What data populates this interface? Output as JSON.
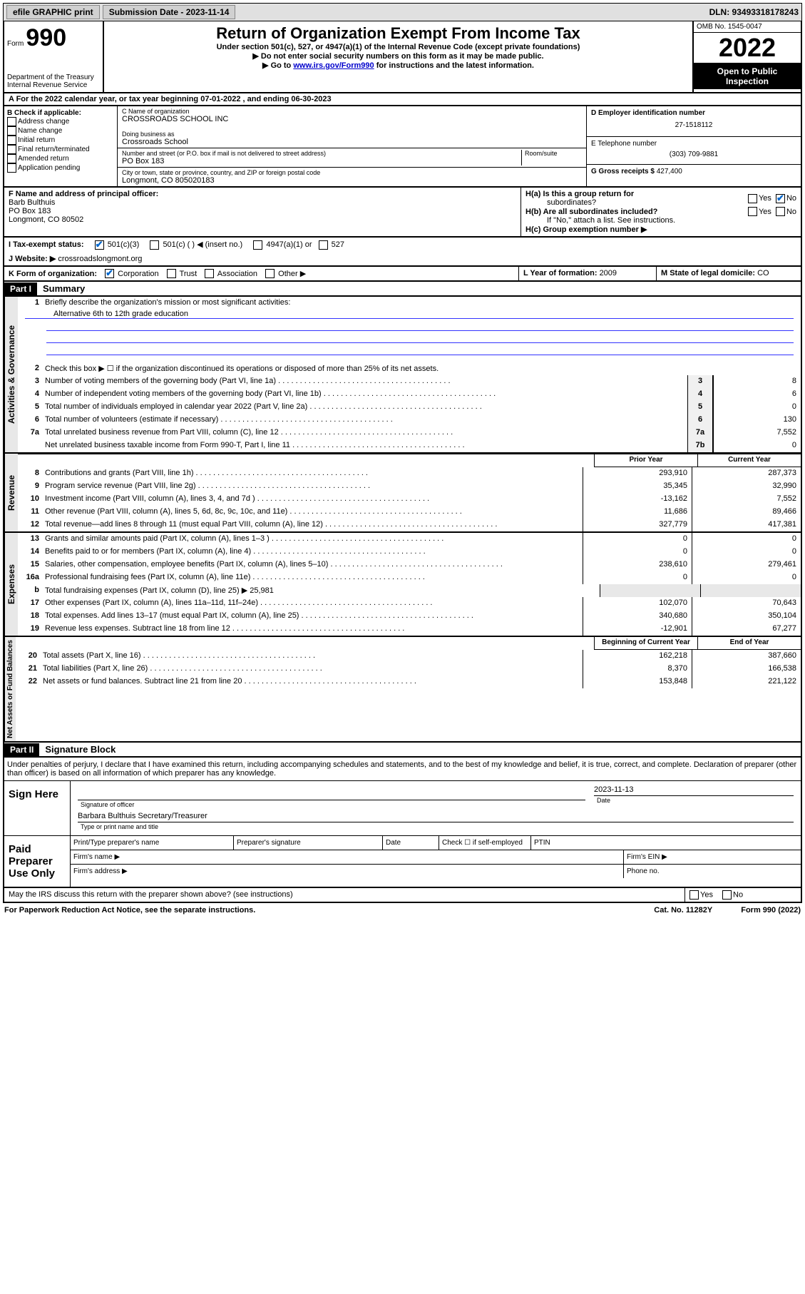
{
  "topbar": {
    "efile": "efile GRAPHIC print",
    "submission_label": "Submission Date - 2023-11-14",
    "dln": "DLN: 93493318178243"
  },
  "header": {
    "form_label": "Form",
    "form_num": "990",
    "dept": "Department of the Treasury",
    "irs": "Internal Revenue Service",
    "title": "Return of Organization Exempt From Income Tax",
    "sub1": "Under section 501(c), 527, or 4947(a)(1) of the Internal Revenue Code (except private foundations)",
    "sub2": "▶ Do not enter social security numbers on this form as it may be made public.",
    "sub3_pre": "▶ Go to ",
    "sub3_link": "www.irs.gov/Form990",
    "sub3_post": " for instructions and the latest information.",
    "omb": "OMB No. 1545-0047",
    "year": "2022",
    "open1": "Open to Public",
    "open2": "Inspection"
  },
  "rowA": {
    "text_pre": "A For the 2022 calendar year, or tax year beginning ",
    "begin": "07-01-2022",
    "mid": " , and ending ",
    "end": "06-30-2023"
  },
  "colB": {
    "hdr": "B Check if applicable:",
    "opts": [
      "Address change",
      "Name change",
      "Initial return",
      "Final return/terminated",
      "Amended return",
      "Application pending"
    ]
  },
  "colC": {
    "name_label": "C Name of organization",
    "name": "CROSSROADS SCHOOL INC",
    "dba_label": "Doing business as",
    "dba": "Crossroads School",
    "addr_label": "Number and street (or P.O. box if mail is not delivered to street address)",
    "room_label": "Room/suite",
    "addr": "PO Box 183",
    "city_label": "City or town, state or province, country, and ZIP or foreign postal code",
    "city": "Longmont, CO  805020183"
  },
  "colD": {
    "ein_label": "D Employer identification number",
    "ein": "27-1518112",
    "phone_label": "E Telephone number",
    "phone": "(303) 709-9881",
    "gross_label": "G Gross receipts $ ",
    "gross": "427,400"
  },
  "rowF": {
    "label": "F Name and address of principal officer:",
    "name": "Barb Bulthuis",
    "addr1": "PO Box 183",
    "addr2": "Longmont, CO  80502"
  },
  "rowH": {
    "ha1": "H(a)  Is this a group return for",
    "ha2": "subordinates?",
    "hb1": "H(b)  Are all subordinates included?",
    "hb2": "If \"No,\" attach a list. See instructions.",
    "hc": "H(c)  Group exemption number ▶",
    "yes": "Yes",
    "no": "No"
  },
  "rowI": {
    "label": "I   Tax-exempt status:",
    "o1": "501(c)(3)",
    "o2": "501(c) (  ) ◀ (insert no.)",
    "o3": "4947(a)(1) or",
    "o4": "527"
  },
  "rowJ": {
    "label": "J   Website: ▶ ",
    "val": "crossroadslongmont.org"
  },
  "rowK": {
    "label": "K Form of organization:",
    "o1": "Corporation",
    "o2": "Trust",
    "o3": "Association",
    "o4": "Other ▶"
  },
  "rowL": {
    "label": "L Year of formation: ",
    "val": "2009"
  },
  "rowM": {
    "label": "M State of legal domicile: ",
    "val": "CO"
  },
  "partI": {
    "tag": "Part I",
    "title": "Summary",
    "l1": "Briefly describe the organization's mission or most significant activities:",
    "mission": "Alternative 6th to 12th grade education",
    "l2": "Check this box ▶ ☐  if the organization discontinued its operations or disposed of more than 25% of its net assets.",
    "lines_simple": [
      {
        "n": "3",
        "d": "Number of voting members of the governing body (Part VI, line 1a)",
        "box": "3",
        "v": "8"
      },
      {
        "n": "4",
        "d": "Number of independent voting members of the governing body (Part VI, line 1b)",
        "box": "4",
        "v": "6"
      },
      {
        "n": "5",
        "d": "Total number of individuals employed in calendar year 2022 (Part V, line 2a)",
        "box": "5",
        "v": "0"
      },
      {
        "n": "6",
        "d": "Total number of volunteers (estimate if necessary)",
        "box": "6",
        "v": "130"
      },
      {
        "n": "7a",
        "d": "Total unrelated business revenue from Part VIII, column (C), line 12",
        "box": "7a",
        "v": "7,552"
      },
      {
        "n": "",
        "d": "Net unrelated business taxable income from Form 990-T, Part I, line 11",
        "box": "7b",
        "v": "0"
      }
    ],
    "hdr_prior": "Prior Year",
    "hdr_curr": "Current Year",
    "revenue": [
      {
        "n": "8",
        "d": "Contributions and grants (Part VIII, line 1h)",
        "p": "293,910",
        "c": "287,373"
      },
      {
        "n": "9",
        "d": "Program service revenue (Part VIII, line 2g)",
        "p": "35,345",
        "c": "32,990"
      },
      {
        "n": "10",
        "d": "Investment income (Part VIII, column (A), lines 3, 4, and 7d )",
        "p": "-13,162",
        "c": "7,552"
      },
      {
        "n": "11",
        "d": "Other revenue (Part VIII, column (A), lines 5, 6d, 8c, 9c, 10c, and 11e)",
        "p": "11,686",
        "c": "89,466"
      },
      {
        "n": "12",
        "d": "Total revenue—add lines 8 through 11 (must equal Part VIII, column (A), line 12)",
        "p": "327,779",
        "c": "417,381"
      }
    ],
    "expenses": [
      {
        "n": "13",
        "d": "Grants and similar amounts paid (Part IX, column (A), lines 1–3 )",
        "p": "0",
        "c": "0"
      },
      {
        "n": "14",
        "d": "Benefits paid to or for members (Part IX, column (A), line 4)",
        "p": "0",
        "c": "0"
      },
      {
        "n": "15",
        "d": "Salaries, other compensation, employee benefits (Part IX, column (A), lines 5–10)",
        "p": "238,610",
        "c": "279,461"
      },
      {
        "n": "16a",
        "d": "Professional fundraising fees (Part IX, column (A), line 11e)",
        "p": "0",
        "c": "0"
      }
    ],
    "l16b_pre": "Total fundraising expenses (Part IX, column (D), line 25) ▶",
    "l16b_val": "25,981",
    "expenses2": [
      {
        "n": "17",
        "d": "Other expenses (Part IX, column (A), lines 11a–11d, 11f–24e)",
        "p": "102,070",
        "c": "70,643"
      },
      {
        "n": "18",
        "d": "Total expenses. Add lines 13–17 (must equal Part IX, column (A), line 25)",
        "p": "340,680",
        "c": "350,104"
      },
      {
        "n": "19",
        "d": "Revenue less expenses. Subtract line 18 from line 12",
        "p": "-12,901",
        "c": "67,277"
      }
    ],
    "hdr_begin": "Beginning of Current Year",
    "hdr_end": "End of Year",
    "netassets": [
      {
        "n": "20",
        "d": "Total assets (Part X, line 16)",
        "p": "162,218",
        "c": "387,660"
      },
      {
        "n": "21",
        "d": "Total liabilities (Part X, line 26)",
        "p": "8,370",
        "c": "166,538"
      },
      {
        "n": "22",
        "d": "Net assets or fund balances. Subtract line 21 from line 20",
        "p": "153,848",
        "c": "221,122"
      }
    ]
  },
  "sides": {
    "gov": "Activities & Governance",
    "rev": "Revenue",
    "exp": "Expenses",
    "net": "Net Assets or Fund Balances"
  },
  "partII": {
    "tag": "Part II",
    "title": "Signature Block",
    "decl": "Under penalties of perjury, I declare that I have examined this return, including accompanying schedules and statements, and to the best of my knowledge and belief, it is true, correct, and complete. Declaration of preparer (other than officer) is based on all information of which preparer has any knowledge.",
    "sign_here": "Sign Here",
    "sig_of_officer": "Signature of officer",
    "date_label": "Date",
    "date": "2023-11-13",
    "officer": "Barbara Bulthuis  Secretary/Treasurer",
    "type_name": "Type or print name and title",
    "paid": "Paid Preparer Use Only",
    "pt_name": "Print/Type preparer's name",
    "pt_sig": "Preparer's signature",
    "pt_date": "Date",
    "pt_check": "Check ☐ if self-employed",
    "ptin": "PTIN",
    "firm_name": "Firm's name  ▶",
    "firm_ein": "Firm's EIN ▶",
    "firm_addr": "Firm's address ▶",
    "phone_no": "Phone no.",
    "may_discuss": "May the IRS discuss this return with the preparer shown above? (see instructions)"
  },
  "footer": {
    "pra": "For Paperwork Reduction Act Notice, see the separate instructions.",
    "cat": "Cat. No. 11282Y",
    "form": "Form 990 (2022)"
  }
}
